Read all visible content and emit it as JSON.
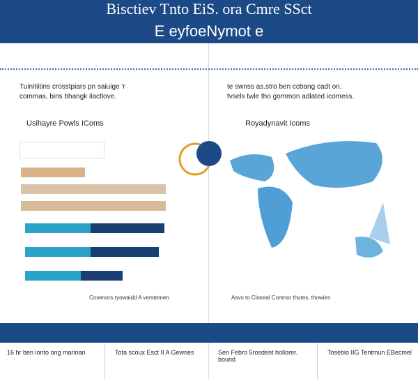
{
  "header": {
    "title": "Bisctiev Tnto EiS. ora Cmre SSct",
    "subtitle": "E eyfoeNymot e"
  },
  "left": {
    "text": [
      "Tuinitiitins crosstpiars pn saiuige 'r",
      "commas, bins bhangk ilactlove."
    ],
    "heading": "Usihayre Powls IComs",
    "caption": "Cosenors ryowaidd A verstemen"
  },
  "right": {
    "text": [
      "te swnss as.stro ben ccbang cadt on.",
      "tvsels twle tho gommon adlated icomess."
    ],
    "heading": "Royadynavit Icoms",
    "caption": "Asvo to Closeal Comnor thutes, thowies"
  },
  "bottom": [
    "16 hr ben ionto ong marinan",
    "Tota scoux Esct II A Gewnes",
    "Sen Febro 5rosdent hollorer. bound",
    "Tosebio IIG Tentmun EBecmel"
  ]
}
